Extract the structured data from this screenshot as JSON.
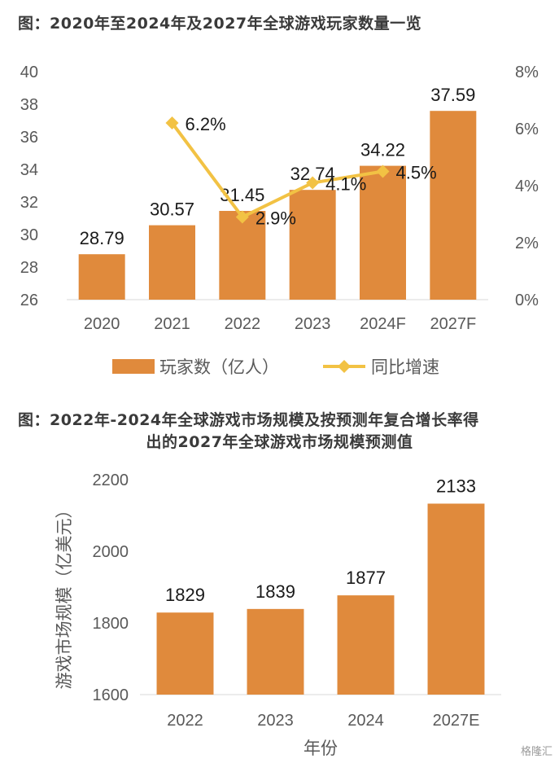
{
  "chart_data": [
    {
      "type": "bar",
      "title": "图：2020年至2024年及2027年全球游戏玩家数量一览",
      "categories": [
        "2020",
        "2021",
        "2022",
        "2023",
        "2024F",
        "2027F"
      ],
      "series": [
        {
          "name": "玩家数（亿人）",
          "type": "bar",
          "values": [
            28.79,
            30.57,
            31.45,
            32.74,
            34.22,
            37.59
          ],
          "labels": [
            "28.79",
            "30.57",
            "31.45",
            "32.74",
            "34.22",
            "37.59"
          ]
        },
        {
          "name": "同比增速",
          "type": "line",
          "axis": "right",
          "values": [
            null,
            6.2,
            2.9,
            4.1,
            4.5,
            null
          ],
          "labels": [
            "",
            "6.2%",
            "2.9%",
            "4.1%",
            "4.5%",
            ""
          ]
        }
      ],
      "ylim": [
        26,
        40
      ],
      "yticks": [
        "26",
        "28",
        "30",
        "32",
        "34",
        "36",
        "38",
        "40"
      ],
      "y2lim": [
        0,
        8
      ],
      "y2ticks": [
        "0%",
        "2%",
        "4%",
        "6%",
        "8%"
      ],
      "legend": "bottom",
      "grid": false,
      "colors": {
        "bar": "#E08A3C",
        "line": "#F2C244"
      }
    },
    {
      "type": "bar",
      "title_line1": "图：2022年-2024年全球游戏市场规模及按预测年复合增长率得",
      "title_line2": "出的2027年全球游戏市场规模预测值",
      "categories": [
        "2022",
        "2023",
        "2024",
        "2027E"
      ],
      "values": [
        1829,
        1839,
        1877,
        2133
      ],
      "labels": [
        "1829",
        "1839",
        "1877",
        "2133"
      ],
      "ylim": [
        1600,
        2200
      ],
      "yticks": [
        "1600",
        "1800",
        "2000",
        "2200"
      ],
      "xlabel": "年份",
      "ylabel": "游戏市场规模（亿美元）",
      "grid": false,
      "colors": {
        "bar": "#E08A3C"
      }
    }
  ],
  "watermark": "格隆汇"
}
